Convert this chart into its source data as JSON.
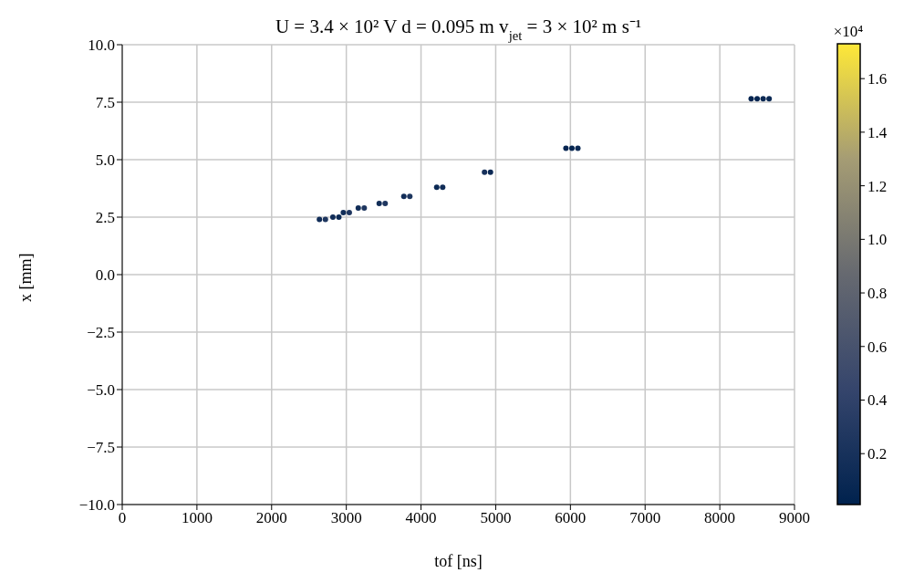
{
  "chart_data": {
    "type": "scatter",
    "title": "U = 3.4 × 10² V d = 0.095 m v$_{jet}$ = 3 × 10² m s⁻¹",
    "xlabel": "tof [ns]",
    "ylabel": "x [mm]",
    "x": [
      2640,
      2720,
      2820,
      2900,
      2960,
      3040,
      3160,
      3240,
      3440,
      3520,
      3770,
      3850,
      4210,
      4290,
      4850,
      4930,
      5940,
      6020,
      6100,
      8420,
      8500,
      8580,
      8660
    ],
    "values": [
      2.4,
      2.4,
      2.5,
      2.5,
      2.7,
      2.7,
      2.9,
      2.9,
      3.1,
      3.1,
      3.4,
      3.4,
      3.8,
      3.8,
      4.45,
      4.45,
      5.5,
      5.5,
      5.5,
      7.65,
      7.65,
      7.65,
      7.65
    ],
    "cvalues": [
      0.15,
      0.25,
      0.15,
      0.1,
      0.15,
      0.25,
      0.15,
      0.25,
      0.15,
      0.25,
      0.15,
      0.25,
      0.1,
      0.15,
      0.2,
      0.1,
      0.05,
      0.05,
      0.1,
      0.05,
      0.05,
      0.1,
      0.1
    ],
    "xlim": [
      0,
      9000
    ],
    "xticks": [
      0,
      1000,
      2000,
      3000,
      4000,
      5000,
      6000,
      7000,
      8000,
      9000
    ],
    "ylim": [
      -10,
      10
    ],
    "yticks": [
      {
        "value": -10,
        "label": "−10.0"
      },
      {
        "value": -7.5,
        "label": "−7.5"
      },
      {
        "value": -5,
        "label": "−5.0"
      },
      {
        "value": -2.5,
        "label": "−2.5"
      },
      {
        "value": 0,
        "label": "0.0"
      },
      {
        "value": 2.5,
        "label": "2.5"
      },
      {
        "value": 5,
        "label": "5.0"
      },
      {
        "value": 7.5,
        "label": "7.5"
      },
      {
        "value": 10,
        "label": "10.0"
      }
    ],
    "clim": [
      0.01,
      1.73
    ],
    "cticks": [
      0.2,
      0.4,
      0.6,
      0.8,
      {
        "value": 1,
        "label": "1.0"
      },
      1.2,
      1.4,
      1.6
    ],
    "annotations": [
      "×10⁴"
    ],
    "grid": true
  }
}
